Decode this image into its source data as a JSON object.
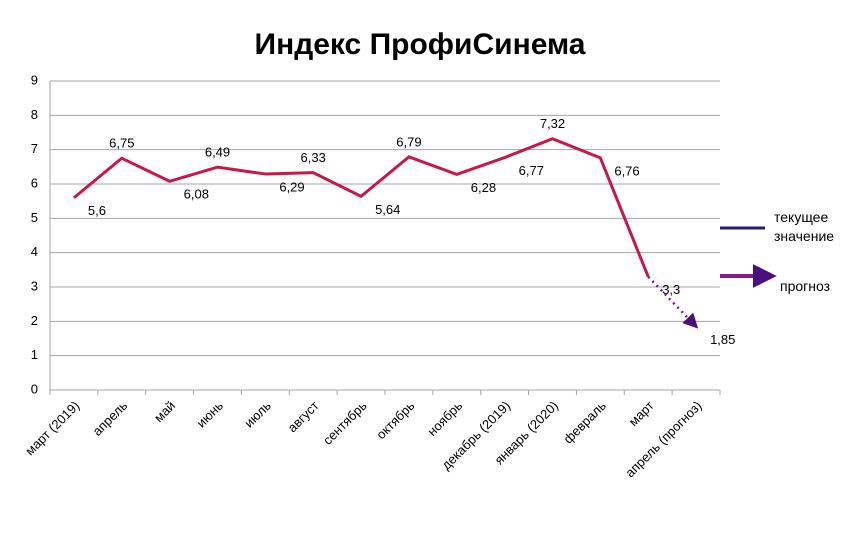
{
  "chart_data": {
    "type": "line",
    "title": "Индекс ПрофиСинема",
    "categories": [
      "март (2019)",
      "апрель",
      "май",
      "июнь",
      "июль",
      "август",
      "сентябрь",
      "октябрь",
      "ноябрь",
      "декабрь (2019)",
      "январь (2020)",
      "февраль",
      "март",
      "апрель (прогноз)"
    ],
    "series": [
      {
        "name": "текущее значение",
        "color": "#c8174a",
        "style": "solid",
        "values": [
          5.6,
          6.75,
          6.08,
          6.49,
          6.29,
          6.33,
          5.64,
          6.79,
          6.28,
          6.77,
          7.32,
          6.76,
          3.3,
          null
        ],
        "value_labels": [
          "5,6",
          "6,75",
          "6,08",
          "6,49",
          "6,29",
          "6,33",
          "5,64",
          "6,79",
          "6,28",
          "6,77",
          "7,32",
          "6,76",
          "3,3",
          null
        ]
      },
      {
        "name": "прогноз",
        "color": "#7b1a8c",
        "style": "dotted",
        "values": [
          null,
          null,
          null,
          null,
          null,
          null,
          null,
          null,
          null,
          null,
          null,
          null,
          3.3,
          1.85
        ],
        "value_labels": [
          null,
          null,
          null,
          null,
          null,
          null,
          null,
          null,
          null,
          null,
          null,
          null,
          null,
          "1,85"
        ]
      }
    ],
    "ylim": [
      0,
      9
    ],
    "yticks": [
      0,
      1,
      2,
      3,
      4,
      5,
      6,
      7,
      8,
      9
    ],
    "grid": true
  }
}
